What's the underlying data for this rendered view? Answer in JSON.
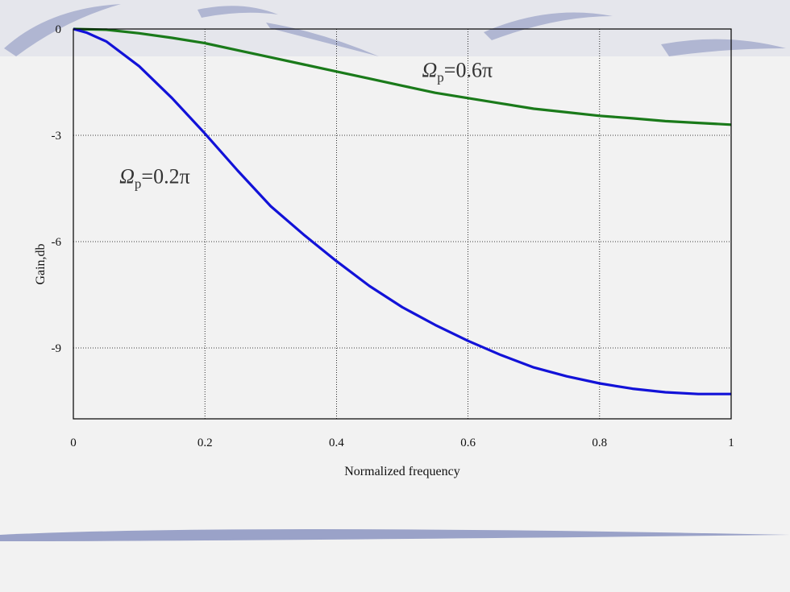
{
  "colors": {
    "background": "#f2f2f2",
    "decoration": "#9aa2c8",
    "series_high": "#1a7a1a",
    "series_low": "#1212d8"
  },
  "chart_data": {
    "type": "line",
    "xlabel": "Normalized frequency",
    "ylabel": "Gain,db",
    "xlim": [
      0,
      1
    ],
    "ylim": [
      -11,
      0
    ],
    "xticks": [
      {
        "value": 0,
        "label": "0"
      },
      {
        "value": 0.2,
        "label": "0.2"
      },
      {
        "value": 0.4,
        "label": "0.4"
      },
      {
        "value": 0.6,
        "label": "0.6"
      },
      {
        "value": 0.8,
        "label": "0.8"
      },
      {
        "value": 1,
        "label": "1"
      }
    ],
    "yticks": [
      {
        "value": 0,
        "label": "0"
      },
      {
        "value": -3,
        "label": "-3"
      },
      {
        "value": -6,
        "label": "-6"
      },
      {
        "value": -9,
        "label": "-9"
      }
    ],
    "grid": true,
    "series": [
      {
        "color": "#1a7a1a",
        "x": [
          0,
          0.05,
          0.1,
          0.15,
          0.2,
          0.25,
          0.3,
          0.35,
          0.4,
          0.45,
          0.5,
          0.55,
          0.6,
          0.65,
          0.7,
          0.75,
          0.8,
          0.85,
          0.9,
          0.95,
          1.0
        ],
        "y": [
          0,
          -0.02,
          -0.12,
          -0.25,
          -0.4,
          -0.6,
          -0.8,
          -1.0,
          -1.2,
          -1.4,
          -1.6,
          -1.8,
          -1.95,
          -2.1,
          -2.25,
          -2.35,
          -2.45,
          -2.52,
          -2.6,
          -2.65,
          -2.7
        ]
      },
      {
        "color": "#1212d8",
        "x": [
          0,
          0.02,
          0.05,
          0.1,
          0.15,
          0.2,
          0.25,
          0.3,
          0.35,
          0.4,
          0.45,
          0.5,
          0.55,
          0.6,
          0.65,
          0.7,
          0.75,
          0.8,
          0.85,
          0.9,
          0.95,
          1.0
        ],
        "y": [
          0,
          -0.1,
          -0.35,
          -1.05,
          -1.95,
          -2.95,
          -4.0,
          -5.0,
          -5.8,
          -6.55,
          -7.25,
          -7.85,
          -8.35,
          -8.8,
          -9.2,
          -9.55,
          -9.8,
          -10.0,
          -10.15,
          -10.25,
          -10.3,
          -10.3
        ]
      }
    ],
    "annotations": [
      {
        "base": "Ω",
        "sub": "p",
        "rest": "=0.6π",
        "x": 0.53,
        "y": -1.35
      },
      {
        "base": "Ω",
        "sub": "p",
        "rest": "=0.2π",
        "x": 0.07,
        "y": -4.35
      }
    ]
  }
}
